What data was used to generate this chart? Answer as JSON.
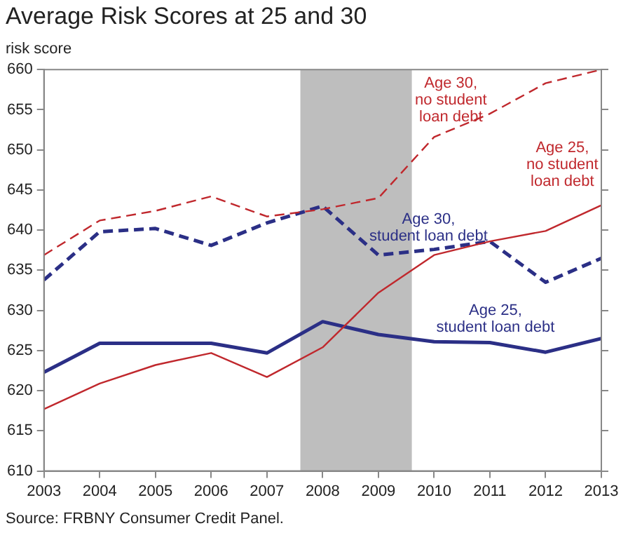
{
  "chart_data": {
    "type": "line",
    "title": "Average Risk Scores at 25 and 30",
    "ylabel": "risk score",
    "x": [
      2003,
      2004,
      2005,
      2006,
      2007,
      2008,
      2009,
      2010,
      2011,
      2012,
      2013
    ],
    "xlim": [
      2003,
      2013
    ],
    "xticks": [
      2003,
      2004,
      2005,
      2006,
      2007,
      2008,
      2009,
      2010,
      2011,
      2012,
      2013
    ],
    "ylim": [
      610,
      660
    ],
    "yticks": [
      610,
      615,
      620,
      625,
      630,
      635,
      640,
      645,
      650,
      655,
      660
    ],
    "grid": false,
    "legend": false,
    "marker": "none",
    "series": [
      {
        "name": "Age 30, no student loan debt",
        "color": "#c0282d",
        "line_style": "dashed",
        "values": [
          636.9,
          641.2,
          642.4,
          644.2,
          641.7,
          642.6,
          644.0,
          651.6,
          654.5,
          658.3,
          660
        ]
      },
      {
        "name": "Age 25, no student loan debt",
        "color": "#c0282d",
        "line_style": "solid",
        "values": [
          617.7,
          620.9,
          623.2,
          624.7,
          621.7,
          625.4,
          632.2,
          636.9,
          638.6,
          639.9,
          643.1
        ]
      },
      {
        "name": "Age 30, student loan debt",
        "color": "#2b2f86",
        "line_style": "dashed",
        "values": [
          633.8,
          639.8,
          640.2,
          638.1,
          640.9,
          643.0,
          636.9,
          637.6,
          638.6,
          633.5,
          636.5
        ]
      },
      {
        "name": "Age 25, student loan debt",
        "color": "#2b2f86",
        "line_style": "solid",
        "values": [
          622.3,
          625.9,
          625.9,
          625.9,
          624.7,
          628.6,
          627.0,
          626.1,
          626.0,
          624.8,
          626.5
        ]
      }
    ],
    "bands": [
      {
        "axis": "x",
        "from": 2007.6,
        "to": 2009.6,
        "color": "#bebebe"
      }
    ],
    "annotations": [
      "Source: FRBNY Consumer Credit Panel."
    ]
  }
}
